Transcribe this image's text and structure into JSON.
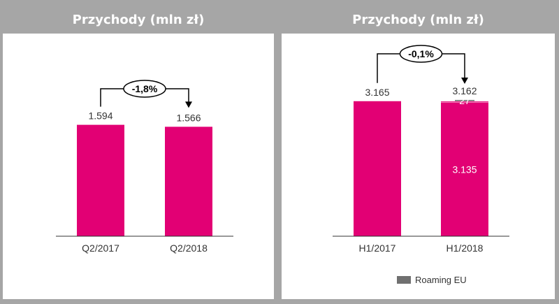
{
  "colors": {
    "bar": "#e20074",
    "roaming": "#707070",
    "header": "#a6a6a6"
  },
  "chart_data": [
    {
      "type": "bar",
      "title": "Przychody (mln zł)",
      "categories": [
        "Q2/2017",
        "Q2/2018"
      ],
      "values": [
        1594,
        1566
      ],
      "value_labels": [
        "1.594",
        "1.566"
      ],
      "change_label": "-1,8%",
      "ylim": [
        0,
        1800
      ]
    },
    {
      "type": "bar",
      "title": "Przychody (mln zł)",
      "categories": [
        "H1/2017",
        "H1/2018"
      ],
      "total_labels": [
        "3.165",
        "3.162"
      ],
      "series": [
        {
          "values": [
            3165,
            3135
          ],
          "value_labels": [
            "",
            "3.135"
          ]
        },
        {
          "name": "Roaming EU",
          "values": [
            0,
            27
          ],
          "value_labels": [
            "",
            "27"
          ]
        }
      ],
      "change_label": "-0,1%",
      "ylim": [
        0,
        3440
      ]
    }
  ]
}
